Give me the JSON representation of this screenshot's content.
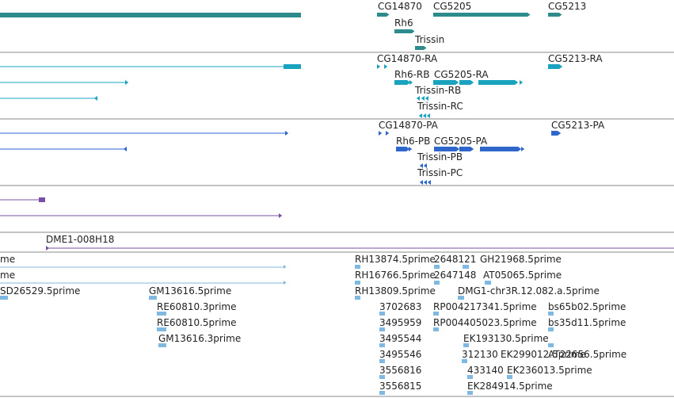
{
  "track_colors": {
    "gene": "#2e8b8b",
    "cdna": "#1aa3be",
    "protein": "#2f66cc",
    "other": "#7a4fa6",
    "clone": "#7a4fa6",
    "est": "#7fb8e0",
    "separator": "#888888"
  },
  "tracks": {
    "genes": {
      "labels": [
        "CG14870",
        "CG5205",
        "CG5213",
        "Rh6",
        "Trissin"
      ]
    },
    "transcripts": {
      "labels": [
        "CG14870-RA",
        "CG5213-RA",
        "Rh6-RB",
        "CG5205-RA",
        "Trissin-RB",
        "Trissin-RC"
      ]
    },
    "polypeptides": {
      "labels": [
        "CG14870-PA",
        "CG5213-PA",
        "Rh6-PB",
        "CG5205-PA",
        "Trissin-PB",
        "Trissin-PC"
      ]
    },
    "clones": {
      "labels": [
        "DME1-008H18"
      ]
    },
    "ests": {
      "labels": [
        "me",
        "me",
        "SD26529.5prime",
        "GM13616.5prime",
        "RE60810.3prime",
        "RE60810.5prime",
        "GM13616.3prime",
        "RH13874.5prime",
        "2648121",
        "GH21968.5prime",
        "RH16766.5prime",
        "2647148",
        "AT05065.5prime",
        "RH13809.5prime",
        "DMG1-chr3R.12.082.a.5prime",
        "3702683",
        "RP004217341.5prime",
        "bs65b02.5prime",
        "3495959",
        "RP004405023.5prime",
        "bs35d11.5prime",
        "3495544",
        "EK193130.5prime",
        "3495546",
        "312130",
        "EK299012.5prime",
        "AT22656.5prime",
        "3556816",
        "433140",
        "EK236013.5prime",
        "3556815",
        "EK284914.5prime"
      ]
    }
  }
}
